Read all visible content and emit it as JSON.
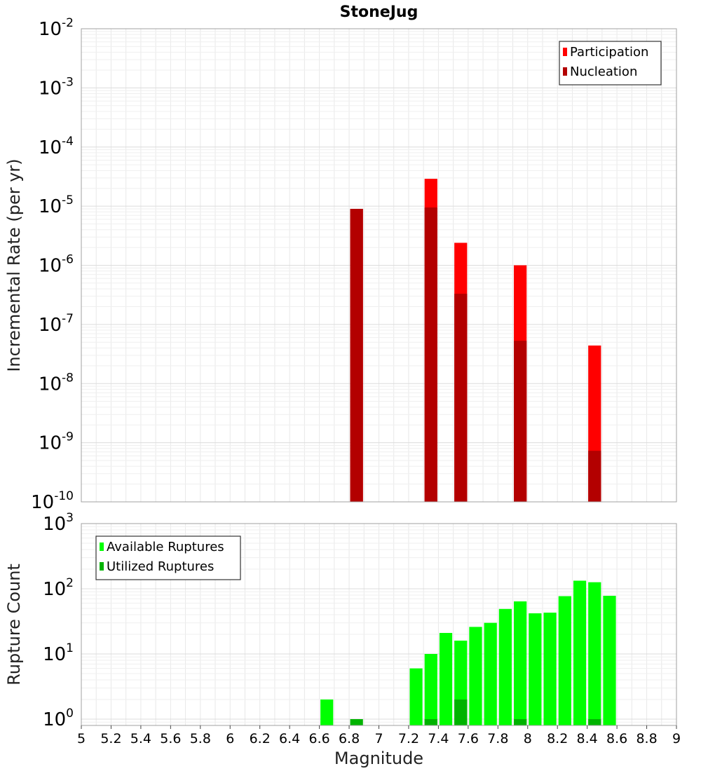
{
  "title": "StoneJug",
  "chart_data": [
    {
      "type": "bar",
      "name": "incremental-rate",
      "ylabel": "Incremental Rate (per yr)",
      "yscale": "log",
      "ylim": [
        1e-10,
        0.01
      ],
      "y_tick_exponents": [
        -10,
        -9,
        -8,
        -7,
        -6,
        -5,
        -4,
        -3,
        -2
      ],
      "xlim": [
        5,
        9
      ],
      "bar_width": 0.1,
      "grid": true,
      "legend": "top-right",
      "series": [
        {
          "name": "Participation",
          "color": "#ff0000",
          "x": [
            6.85,
            7.35,
            7.55,
            7.95,
            8.45
          ],
          "values": [
            9e-06,
            2.9e-05,
            2.4e-06,
            1e-06,
            4.4e-08
          ]
        },
        {
          "name": "Nucleation",
          "color": "#b30000",
          "x": [
            6.85,
            7.35,
            7.55,
            7.95,
            8.45
          ],
          "values": [
            9e-06,
            9.5e-06,
            3.3e-07,
            5.3e-08,
            7.3e-10
          ]
        }
      ]
    },
    {
      "type": "bar",
      "name": "rupture-count",
      "ylabel": "Rupture Count",
      "xlabel": "Magnitude",
      "yscale": "log",
      "ylim": [
        0.8,
        1000
      ],
      "y_tick_exponents": [
        0,
        1,
        2,
        3
      ],
      "xlim": [
        5,
        9
      ],
      "x_ticks": [
        "5",
        "5.2",
        "5.4",
        "5.6",
        "5.8",
        "6",
        "6.2",
        "6.4",
        "6.6",
        "6.8",
        "7",
        "7.2",
        "7.4",
        "7.6",
        "7.8",
        "8",
        "8.2",
        "8.4",
        "8.6",
        "8.8",
        "9"
      ],
      "bar_width": 0.1,
      "grid": true,
      "legend": "top-left",
      "series": [
        {
          "name": "Available Ruptures",
          "color": "#00ff00",
          "x": [
            6.65,
            7.25,
            7.35,
            7.45,
            7.55,
            7.65,
            7.75,
            7.85,
            7.95,
            8.05,
            8.15,
            8.25,
            8.35,
            8.45,
            8.55
          ],
          "values": [
            2,
            6,
            10,
            21,
            16,
            26,
            30,
            49,
            64,
            42,
            43,
            77,
            133,
            126,
            78
          ]
        },
        {
          "name": "Utilized Ruptures",
          "color": "#00b300",
          "x": [
            6.85,
            7.35,
            7.55,
            7.95,
            8.45
          ],
          "values": [
            1,
            1,
            2,
            1,
            1
          ]
        }
      ]
    }
  ]
}
